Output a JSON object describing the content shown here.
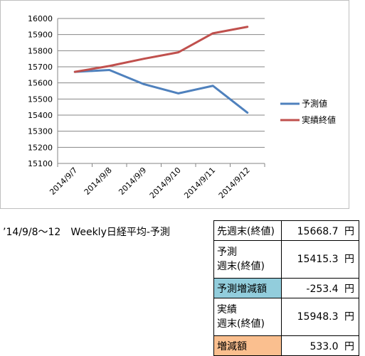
{
  "chart_data": {
    "type": "line",
    "categories": [
      "2014/9/7",
      "2014/9/8",
      "2014/9/9",
      "2014/9/10",
      "2014/9/11",
      "2014/9/12"
    ],
    "series": [
      {
        "name": "予測値",
        "color": "#4f81bd",
        "values": [
          15668.7,
          15680,
          15592,
          15535,
          15582,
          15415.3
        ]
      },
      {
        "name": "実績終値",
        "color": "#c0504d",
        "values": [
          15668.7,
          15705,
          15750,
          15790,
          15908,
          15948.3
        ]
      }
    ],
    "ylim": [
      15100,
      16000
    ],
    "yticks": [
      15100,
      15200,
      15300,
      15400,
      15500,
      15600,
      15700,
      15800,
      15900,
      16000
    ],
    "grid": true,
    "legend_position": "right"
  },
  "caption": "’14/9/8～12　Weekly日経平均-予測",
  "table": {
    "unit": "円",
    "rows": [
      {
        "lines": [
          "先週末(終値)"
        ],
        "value": "15668.7",
        "highlight": ""
      },
      {
        "lines": [
          "予測",
          "週末(終値)"
        ],
        "value": "15415.3",
        "highlight": ""
      },
      {
        "lines": [
          "予測増減額"
        ],
        "value": "-253.4",
        "highlight": "#92cddc"
      },
      {
        "lines": [
          "実績",
          "週末(終値)"
        ],
        "value": "15948.3",
        "highlight": ""
      },
      {
        "lines": [
          "増減額"
        ],
        "value": "533.0",
        "highlight": "#fabf8f"
      }
    ]
  }
}
